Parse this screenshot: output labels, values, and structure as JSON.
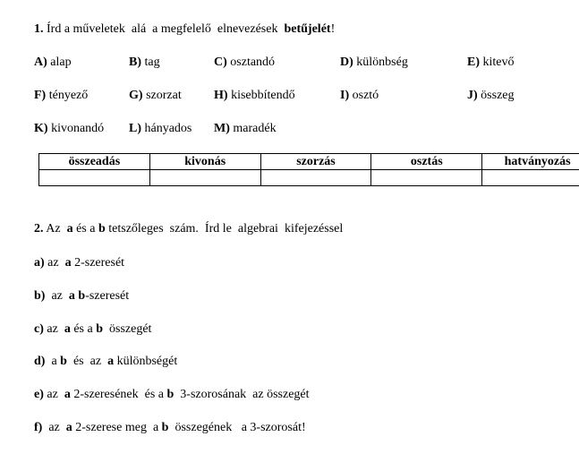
{
  "task1": {
    "title": [
      {
        "t": "1.",
        "b": true
      },
      {
        "t": " Írd a műveletek  alá  a megfelelő  elnevezések  ",
        "b": false
      },
      {
        "t": "betűjelét",
        "b": true
      },
      {
        "t": "!",
        "b": false
      }
    ],
    "options": [
      [
        {
          "letter": "A)",
          "text": " alap"
        },
        {
          "letter": "B)",
          "text": " tag"
        },
        {
          "letter": "C)",
          "text": " osztandó"
        },
        {
          "letter": "D)",
          "text": " különbség"
        },
        {
          "letter": "E)",
          "text": " kitevő"
        }
      ],
      [
        {
          "letter": "F)",
          "text": " tényező"
        },
        {
          "letter": "G)",
          "text": " szorzat"
        },
        {
          "letter": "H)",
          "text": " kisebbítendő"
        },
        {
          "letter": "I)",
          "text": " osztó"
        },
        {
          "letter": "J)",
          "text": " összeg"
        }
      ],
      [
        {
          "letter": "K)",
          "text": " kivonandó"
        },
        {
          "letter": "L)",
          "text": " hányados"
        },
        {
          "letter": "M)",
          "text": " maradék"
        }
      ]
    ],
    "table_headers": [
      "összeadás",
      "kivonás",
      "szorzás",
      "osztás",
      "hatványozás"
    ]
  },
  "task2": {
    "title": [
      {
        "t": "2.",
        "b": true
      },
      {
        "t": " Az  ",
        "b": false
      },
      {
        "t": "a",
        "b": true
      },
      {
        "t": " és a ",
        "b": false
      },
      {
        "t": "b",
        "b": true
      },
      {
        "t": " tetszőleges  szám.  Írd le  algebrai  kifejezéssel",
        "b": false
      }
    ],
    "items": [
      [
        {
          "t": "a)",
          "b": true
        },
        {
          "t": " az  ",
          "b": false
        },
        {
          "t": "a",
          "b": true
        },
        {
          "t": " 2-szeresét",
          "b": false
        }
      ],
      [
        {
          "t": "b)",
          "b": true
        },
        {
          "t": "  az  ",
          "b": false
        },
        {
          "t": "a b",
          "b": true
        },
        {
          "t": "-szeresét",
          "b": false
        }
      ],
      [
        {
          "t": "c)",
          "b": true
        },
        {
          "t": " az  ",
          "b": false
        },
        {
          "t": "a",
          "b": true
        },
        {
          "t": " és a ",
          "b": false
        },
        {
          "t": "b",
          "b": true
        },
        {
          "t": "  összegét",
          "b": false
        }
      ],
      [
        {
          "t": "d)",
          "b": true
        },
        {
          "t": "  a ",
          "b": false
        },
        {
          "t": "b",
          "b": true
        },
        {
          "t": "  és  az  ",
          "b": false
        },
        {
          "t": "a",
          "b": true
        },
        {
          "t": " különbségét",
          "b": false
        }
      ],
      [
        {
          "t": "e)",
          "b": true
        },
        {
          "t": " az  ",
          "b": false
        },
        {
          "t": "a",
          "b": true
        },
        {
          "t": " 2-szeresének  és a ",
          "b": false
        },
        {
          "t": "b",
          "b": true
        },
        {
          "t": "  3-szorosának  az összegét",
          "b": false
        }
      ],
      [
        {
          "t": "f)",
          "b": true
        },
        {
          "t": "  az  ",
          "b": false
        },
        {
          "t": "a",
          "b": true
        },
        {
          "t": " 2-szerese meg  a ",
          "b": false
        },
        {
          "t": "b",
          "b": true
        },
        {
          "t": "  összegének   a 3-szorosát!",
          "b": false
        }
      ]
    ]
  }
}
